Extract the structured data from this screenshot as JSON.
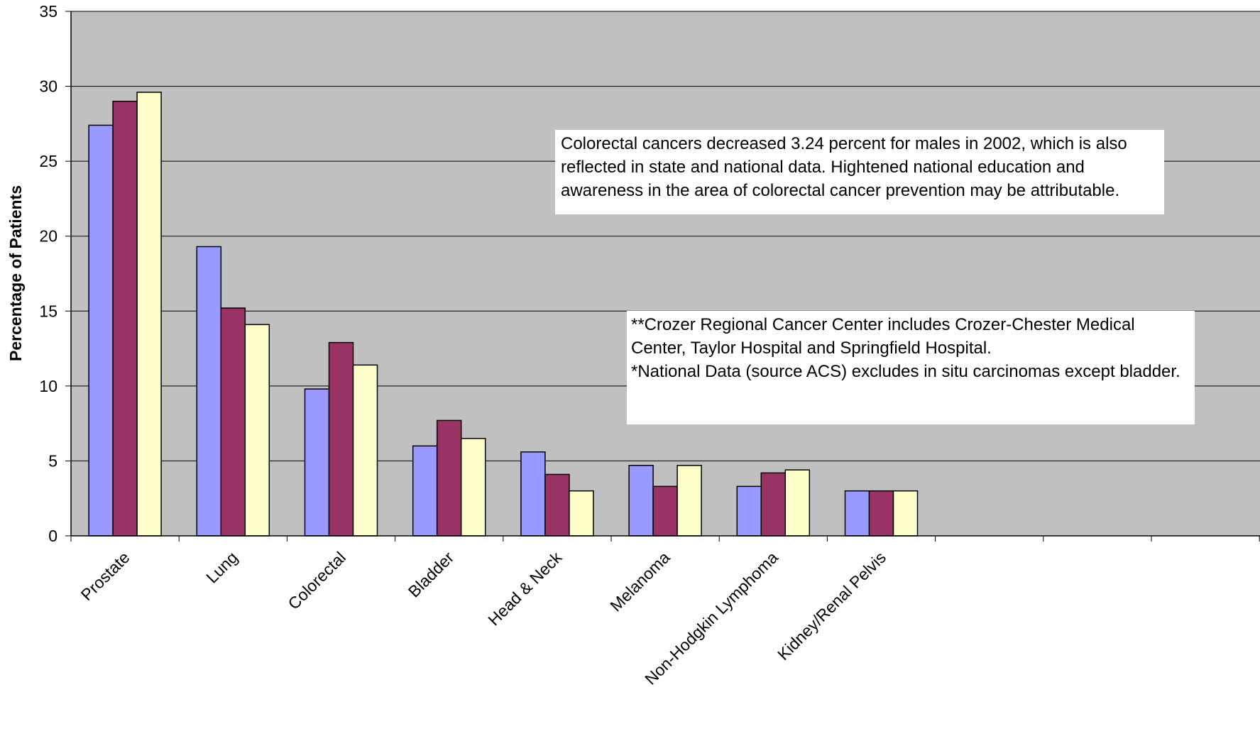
{
  "chart_data": {
    "type": "bar",
    "ylabel": "Percentage of Patients",
    "xlabel": "",
    "ylim": [
      0,
      35
    ],
    "yticks": [
      "0",
      "5",
      "10",
      "15",
      "20",
      "25",
      "30",
      "35"
    ],
    "grid": true,
    "categories": [
      "Prostate",
      "Lung",
      "Colorectal",
      "Bladder",
      "Head & Neck",
      "Melanoma",
      "Non-Hodgkin Lymphoma",
      "Kidney/Renal Pelvis"
    ],
    "series": [
      {
        "color": "#9999ff",
        "values": [
          27.4,
          19.3,
          9.8,
          6.0,
          5.6,
          4.7,
          3.3,
          3.0
        ]
      },
      {
        "color": "#993366",
        "values": [
          29.0,
          15.2,
          12.9,
          7.7,
          4.1,
          3.3,
          4.2,
          3.0
        ]
      },
      {
        "color": "#ffffcc",
        "values": [
          29.6,
          14.1,
          11.4,
          6.5,
          3.0,
          4.7,
          4.4,
          3.0
        ]
      }
    ],
    "plot_background": "#c0c0c0",
    "annotations": [
      "Colorectal cancers decreased 3.24 percent for males in 2002, which is also reflected in state and national data.  Hightened national education and awareness in the area of colorectal cancer prevention may be attributable.",
      "**Crozer Regional Cancer Center includes Crozer-Chester Medical Center, Taylor Hospital and Springfield Hospital.\n *National Data (source ACS) excludes in situ carcinomas except bladder."
    ]
  }
}
